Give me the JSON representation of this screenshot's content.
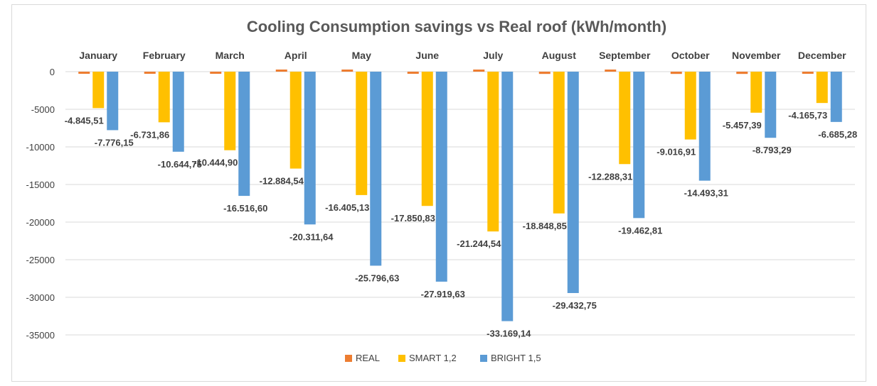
{
  "chart_data": {
    "type": "bar",
    "title": "Cooling Consumption savings vs Real roof (kWh/month)",
    "xlabel": "",
    "ylabel": "",
    "ylim": [
      -35000,
      0
    ],
    "yticks": [
      0,
      -5000,
      -10000,
      -15000,
      -20000,
      -25000,
      -30000,
      -35000
    ],
    "grid": true,
    "legend_position": "bottom",
    "categories": [
      "January",
      "February",
      "March",
      "April",
      "May",
      "June",
      "July",
      "August",
      "September",
      "October",
      "November",
      "December"
    ],
    "series": [
      {
        "name": "REAL",
        "color": "#ED7D31",
        "values": [
          -200,
          -200,
          -200,
          100,
          100,
          -200,
          100,
          -300,
          100,
          -300,
          -300,
          -200
        ],
        "labels": []
      },
      {
        "name": "SMART 1,2",
        "color": "#FFC000",
        "values": [
          -4845.51,
          -6731.86,
          -10444.9,
          -12884.54,
          -16405.13,
          -17850.83,
          -21244.54,
          -18848.85,
          -12288.31,
          -9016.91,
          -5457.39,
          -4165.73
        ],
        "labels": [
          "-4.845,51",
          "-6.731,86",
          "-10.444,90",
          "-12.884,54",
          "-16.405,13",
          "-17.850,83",
          "-21.244,54",
          "-18.848,85",
          "-12.288,31",
          "-9.016,91",
          "-5.457,39",
          "-4.165,73"
        ]
      },
      {
        "name": "BRIGHT 1,5",
        "color": "#5B9BD5",
        "values": [
          -7776.15,
          -10644.75,
          -16516.6,
          -20311.64,
          -25796.63,
          -27919.63,
          -33169.14,
          -29432.75,
          -19462.81,
          -14493.31,
          -8793.29,
          -6685.28
        ],
        "labels": [
          "-7.776,15",
          "-10.644,75",
          "-16.516,60",
          "-20.311,64",
          "-25.796,63",
          "-27.919,63",
          "-33.169,14",
          "-29.432,75",
          "-19.462,81",
          "-14.493,31",
          "-8.793,29",
          "-6.685,28"
        ]
      }
    ]
  },
  "colors": {
    "grid": "#d9d9d9",
    "text": "#404040",
    "title": "#595959"
  }
}
